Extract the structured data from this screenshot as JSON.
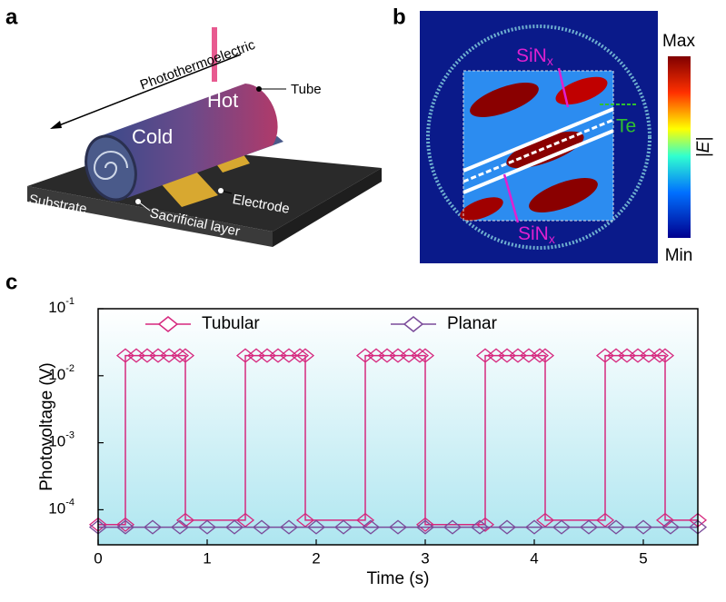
{
  "panel_labels": [
    "a",
    "b",
    "c"
  ],
  "diagram_a": {
    "arrow_label": "Photothermoelectric",
    "hot": "Hot",
    "cold": "Cold",
    "tube": "Tube",
    "electrode": "Electrode",
    "substrate": "Substrate",
    "sacrificial": "Sacrificial layer"
  },
  "diagram_b": {
    "sin_top": {
      "base": "SiN",
      "sub": "x"
    },
    "sin_bottom": {
      "base": "SiN",
      "sub": "x"
    },
    "te": "Te",
    "max": "Max",
    "min": "Min",
    "field": "|E|"
  },
  "chart_data": {
    "type": "line",
    "xlabel": "Time (s)",
    "ylabel": "Photovoltage (V)",
    "xlim": [
      0,
      5.5
    ],
    "xticks": [
      0,
      1,
      2,
      3,
      4,
      5
    ],
    "ylim": [
      3e-05,
      0.1
    ],
    "log_y": true,
    "yticks": [
      {
        "value": 0.1,
        "label": "10",
        "exponent": "-1"
      },
      {
        "value": 0.01,
        "label": "10",
        "exponent": "-2"
      },
      {
        "value": 0.001,
        "label": "10",
        "exponent": "-3"
      },
      {
        "value": 0.0001,
        "label": "10",
        "exponent": "-4"
      }
    ],
    "legend": "top",
    "series": [
      {
        "name": "Tubular",
        "color": "#d6287e",
        "x": [
          0,
          0.25,
          0.25,
          0.35,
          0.45,
          0.55,
          0.65,
          0.75,
          0.8,
          0.8,
          1.35,
          1.35,
          1.45,
          1.55,
          1.65,
          1.75,
          1.85,
          1.9,
          1.9,
          2.45,
          2.45,
          2.55,
          2.65,
          2.75,
          2.85,
          2.95,
          3.0,
          3.0,
          3.55,
          3.55,
          3.65,
          3.75,
          3.85,
          3.95,
          4.05,
          4.1,
          4.1,
          4.65,
          4.65,
          4.75,
          4.85,
          4.95,
          5.05,
          5.15,
          5.2,
          5.2,
          5.5
        ],
        "values": [
          6e-05,
          6e-05,
          0.02,
          0.02,
          0.02,
          0.02,
          0.02,
          0.02,
          0.02,
          7e-05,
          7e-05,
          0.02,
          0.02,
          0.02,
          0.02,
          0.02,
          0.02,
          0.02,
          7e-05,
          7e-05,
          0.02,
          0.02,
          0.02,
          0.02,
          0.02,
          0.02,
          0.02,
          6e-05,
          6e-05,
          0.02,
          0.02,
          0.02,
          0.02,
          0.02,
          0.02,
          0.02,
          7e-05,
          7e-05,
          0.02,
          0.02,
          0.02,
          0.02,
          0.02,
          0.02,
          0.02,
          7e-05,
          7e-05
        ]
      },
      {
        "name": "Planar",
        "color": "#7a4b9a",
        "x": [
          0,
          0.25,
          0.5,
          0.75,
          1,
          1.25,
          1.5,
          1.75,
          2,
          2.25,
          2.5,
          2.75,
          3,
          3.25,
          3.5,
          3.75,
          4,
          4.25,
          4.5,
          4.75,
          5,
          5.25,
          5.5
        ],
        "values": [
          5.5e-05,
          5.5e-05,
          5.5e-05,
          5.5e-05,
          5.5e-05,
          5.5e-05,
          5.5e-05,
          5.5e-05,
          5.5e-05,
          5.5e-05,
          5.5e-05,
          5.5e-05,
          5.5e-05,
          5.5e-05,
          5.5e-05,
          5.5e-05,
          5.5e-05,
          5.5e-05,
          5.5e-05,
          5.5e-05,
          5.5e-05,
          5.5e-05,
          5.5e-05
        ]
      }
    ]
  }
}
